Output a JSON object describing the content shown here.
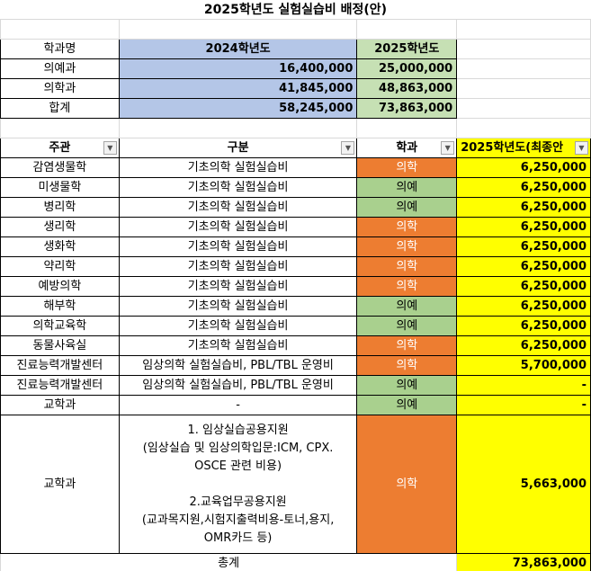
{
  "title": "2025학년도 실험실습비 배정(안)",
  "summary": {
    "headers": [
      "학과명",
      "2024학년도",
      "2025학년도"
    ],
    "rows": [
      {
        "name": "의예과",
        "y2024": "16,400,000",
        "y2025": "25,000,000"
      },
      {
        "name": "의학과",
        "y2024": "41,845,000",
        "y2025": "48,863,000"
      },
      {
        "name": "합계",
        "y2024": "58,245,000",
        "y2025": "73,863,000"
      }
    ]
  },
  "detail": {
    "headers": [
      "주관",
      "구분",
      "학과",
      "2025학년도(최종안"
    ],
    "filter_icon": "dropdown-arrow-icon",
    "rows": [
      {
        "dept": "감염생물학",
        "category": "기초의학 실험실습비",
        "major": "의학",
        "amount": "6,250,000"
      },
      {
        "dept": "미생물학",
        "category": "기초의학 실험실습비",
        "major": "의예",
        "amount": "6,250,000"
      },
      {
        "dept": "병리학",
        "category": "기초의학 실험실습비",
        "major": "의예",
        "amount": "6,250,000"
      },
      {
        "dept": "생리학",
        "category": "기초의학 실험실습비",
        "major": "의학",
        "amount": "6,250,000"
      },
      {
        "dept": "생화학",
        "category": "기초의학 실험실습비",
        "major": "의학",
        "amount": "6,250,000"
      },
      {
        "dept": "약리학",
        "category": "기초의학 실험실습비",
        "major": "의학",
        "amount": "6,250,000"
      },
      {
        "dept": "예방의학",
        "category": "기초의학 실험실습비",
        "major": "의학",
        "amount": "6,250,000"
      },
      {
        "dept": "해부학",
        "category": "기초의학 실험실습비",
        "major": "의예",
        "amount": "6,250,000"
      },
      {
        "dept": "의학교육학",
        "category": "기초의학 실험실습비",
        "major": "의예",
        "amount": "6,250,000"
      },
      {
        "dept": "동물사육실",
        "category": "기초의학 실험실습비",
        "major": "의학",
        "amount": "6,250,000"
      },
      {
        "dept": "진료능력개발센터",
        "category": "임상의학 실험실습비, PBL/TBL 운영비",
        "major": "의학",
        "amount": "5,700,000"
      },
      {
        "dept": "진료능력개발센터",
        "category": "임상의학 실험실습비, PBL/TBL 운영비",
        "major": "의예",
        "amount": "-"
      },
      {
        "dept": "교학과",
        "category": "-",
        "major": "의예",
        "amount": "-"
      }
    ],
    "big_row": {
      "dept": "교학과",
      "category_lines": [
        "1. 임상실습공용지원",
        "(임상실습 및 임상의학입문:ICM, CPX.",
        "OSCE 관련 비용)",
        "",
        "2.교육업무공용지원",
        "(교과목지원,시험지출력비용-토너,용지,",
        "OMR카드 등)"
      ],
      "major": "의학",
      "amount": "5,663,000"
    },
    "total_label": "총계",
    "total": "73,863,000"
  },
  "colors": {
    "medicine": "#ed7d31",
    "premed": "#a9d08e",
    "y2024": "#b4c6e7",
    "y2025": "#c6e0b4",
    "final": "#ffff00"
  }
}
